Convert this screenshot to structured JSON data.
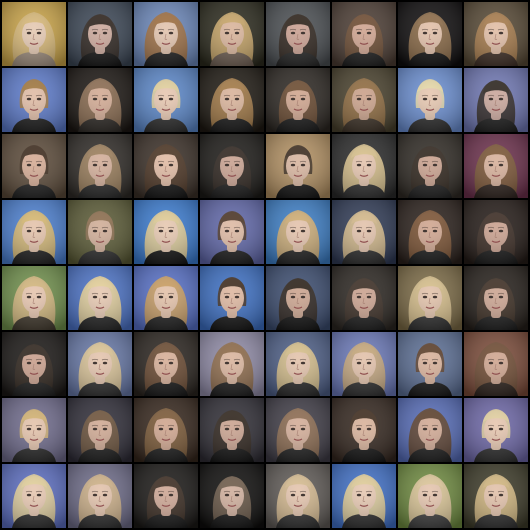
{
  "grid": {
    "rows": 8,
    "cols": 8,
    "tiles": [
      {
        "bg": "#c9a347",
        "hair": "#d7b777",
        "skin": "#e5c9b2",
        "shirt": "#9b8a7a",
        "style": "long"
      },
      {
        "bg": "#3b4655",
        "hair": "#2b2019",
        "skin": "#cba89b",
        "shirt": "#111111",
        "style": "dark"
      },
      {
        "bg": "#6a86b9",
        "hair": "#9d6c3d",
        "skin": "#e2c3ad",
        "shirt": "#1d1d1d",
        "style": "long"
      },
      {
        "bg": "#2b2a1d",
        "hair": "#c7a466",
        "skin": "#d9b49a",
        "shirt": "#6b5b4f",
        "style": "long"
      },
      {
        "bg": "#4a4e52",
        "hair": "#2a1f16",
        "skin": "#caa091",
        "shirt": "#232323",
        "style": "dark"
      },
      {
        "bg": "#4b3c33",
        "hair": "#6d4a30",
        "skin": "#cfa38f",
        "shirt": "#1b1b1b",
        "style": "dark"
      },
      {
        "bg": "#0e0c0d",
        "hair": "#8c6a46",
        "skin": "#e1bfa8",
        "shirt": "#101010",
        "style": "long"
      },
      {
        "bg": "#564834",
        "hair": "#a77a4a",
        "skin": "#e1bda5",
        "shirt": "#3b2b22",
        "style": "long"
      },
      {
        "bg": "#5b79c9",
        "hair": "#a0763d",
        "skin": "#e0bca5",
        "shirt": "#1b1b1b",
        "style": "short"
      },
      {
        "bg": "#1b1612",
        "hair": "#8a6a4f",
        "skin": "#d2aa93",
        "shirt": "#2a2622",
        "style": "long"
      },
      {
        "bg": "#5a86c8",
        "hair": "#e2d09c",
        "skin": "#e7c7b0",
        "shirt": "#2a2a2a",
        "style": "short"
      },
      {
        "bg": "#1e1912",
        "hair": "#a27844",
        "skin": "#d9b39a",
        "shirt": "#171717",
        "style": "long"
      },
      {
        "bg": "#2c2722",
        "hair": "#6b4a2f",
        "skin": "#cfa58e",
        "shirt": "#181818",
        "style": "dark"
      },
      {
        "bg": "#48402c",
        "hair": "#8f6a3e",
        "skin": "#caa18a",
        "shirt": "#3a2f24",
        "style": "long"
      },
      {
        "bg": "#6a8ed1",
        "hair": "#e6d8a7",
        "skin": "#e6c7b0",
        "shirt": "#2a2a2a",
        "style": "short"
      },
      {
        "bg": "#6e76b2",
        "hair": "#2a221c",
        "skin": "#c9a69b",
        "shirt": "#1a1a1a",
        "style": "dark"
      },
      {
        "bg": "#5b4a39",
        "hair": "#3c2a1c",
        "skin": "#d5ab94",
        "shirt": "#1d1d1d",
        "style": "short"
      },
      {
        "bg": "#2e2a26",
        "hair": "#9b7d5a",
        "skin": "#d2ad98",
        "shirt": "#262626",
        "style": "long"
      },
      {
        "bg": "#3a2f27",
        "hair": "#4a3321",
        "skin": "#e0baa3",
        "shirt": "#111111",
        "style": "long"
      },
      {
        "bg": "#1c1a17",
        "hair": "#2e241d",
        "skin": "#c8a190",
        "shirt": "#1b1b1b",
        "style": "dark"
      },
      {
        "bg": "#b18f61",
        "hair": "#3a2a1d",
        "skin": "#d8b59f",
        "shirt": "#121212",
        "style": "short"
      },
      {
        "bg": "#2a2a2a",
        "hair": "#d8c08a",
        "skin": "#e4c4ad",
        "shirt": "#2c2c2c",
        "style": "long"
      },
      {
        "bg": "#2f2a24",
        "hair": "#2f241b",
        "skin": "#c9a18e",
        "shirt": "#1e1e1e",
        "style": "dark"
      },
      {
        "bg": "#6b2f4b",
        "hair": "#7a5533",
        "skin": "#d7b09a",
        "shirt": "#2a1f1a",
        "style": "long"
      },
      {
        "bg": "#4b7fd0",
        "hair": "#d7b870",
        "skin": "#e4c3ab",
        "shirt": "#1d1d1d",
        "style": "long"
      },
      {
        "bg": "#5a5a35",
        "hair": "#8b6c4c",
        "skin": "#d0ad97",
        "shirt": "#2b2b2b",
        "style": "short"
      },
      {
        "bg": "#3a7bd0",
        "hair": "#e0cc95",
        "skin": "#e6c8b0",
        "shirt": "#111111",
        "style": "long"
      },
      {
        "bg": "#5f66a8",
        "hair": "#4a3324",
        "skin": "#ddb9a3",
        "shirt": "#1b1b1b",
        "style": "short"
      },
      {
        "bg": "#3c7ec6",
        "hair": "#d0ad73",
        "skin": "#e4c3ac",
        "shirt": "#202020",
        "style": "long"
      },
      {
        "bg": "#2f3a55",
        "hair": "#d5b98a",
        "skin": "#e2c2ab",
        "shirt": "#2a2a2a",
        "style": "long"
      },
      {
        "bg": "#2a201b",
        "hair": "#7c5333",
        "skin": "#cfa58f",
        "shirt": "#1a1a1a",
        "style": "long"
      },
      {
        "bg": "#241b17",
        "hair": "#3a2a21",
        "skin": "#c9a08e",
        "shirt": "#171717",
        "style": "dark"
      },
      {
        "bg": "#6f8f4b",
        "hair": "#d3b67c",
        "skin": "#e5c4ad",
        "shirt": "#3d3529",
        "style": "long"
      },
      {
        "bg": "#4b72c6",
        "hair": "#e4cf98",
        "skin": "#e6c8b1",
        "shirt": "#222222",
        "style": "long"
      },
      {
        "bg": "#566fc6",
        "hair": "#c99c60",
        "skin": "#e3c1a9",
        "shirt": "#1f1f1f",
        "style": "long"
      },
      {
        "bg": "#3c6fc3",
        "hair": "#3d2a1c",
        "skin": "#ddb7a0",
        "shirt": "#121212",
        "style": "short"
      },
      {
        "bg": "#3b4c6f",
        "hair": "#2a1f16",
        "skin": "#cba48f",
        "shirt": "#111111",
        "style": "dark"
      },
      {
        "bg": "#2b2621",
        "hair": "#3a2c22",
        "skin": "#caa28f",
        "shirt": "#1b1b1b",
        "style": "dark"
      },
      {
        "bg": "#7b6a45",
        "hair": "#d6be8a",
        "skin": "#e2c2aa",
        "shirt": "#2d2d2d",
        "style": "long"
      },
      {
        "bg": "#251f1a",
        "hair": "#3c2c21",
        "skin": "#cba491",
        "shirt": "#1a1a1a",
        "style": "dark"
      },
      {
        "bg": "#1a1715",
        "hair": "#2d221a",
        "skin": "#c99f8c",
        "shirt": "#1b1b1b",
        "style": "dark"
      },
      {
        "bg": "#6677a6",
        "hair": "#dcc494",
        "skin": "#e4c4ad",
        "shirt": "#2b2b2b",
        "style": "long"
      },
      {
        "bg": "#2a241f",
        "hair": "#6a4a30",
        "skin": "#d6ae97",
        "shirt": "#151515",
        "style": "long"
      },
      {
        "bg": "#8f8aa6",
        "hair": "#8c6846",
        "skin": "#d9b49d",
        "shirt": "#1b1b1b",
        "style": "long"
      },
      {
        "bg": "#4d5e86",
        "hair": "#d7bf89",
        "skin": "#e3c3ab",
        "shirt": "#272727",
        "style": "long"
      },
      {
        "bg": "#6a78b8",
        "hair": "#c6a77a",
        "skin": "#e2c1aa",
        "shirt": "#2b2b2b",
        "style": "long"
      },
      {
        "bg": "#5b6e94",
        "hair": "#5a3c27",
        "skin": "#d8b19a",
        "shirt": "#141414",
        "style": "short"
      },
      {
        "bg": "#7a4a38",
        "hair": "#6e4a31",
        "skin": "#cfa58f",
        "shirt": "#2a1f19",
        "style": "long"
      },
      {
        "bg": "#6e6a8b",
        "hair": "#d2b171",
        "skin": "#e4c3ab",
        "shirt": "#262626",
        "style": "short"
      },
      {
        "bg": "#2f2d38",
        "hair": "#6d5239",
        "skin": "#cfa993",
        "shirt": "#1b1b1b",
        "style": "dark"
      },
      {
        "bg": "#35261c",
        "hair": "#7b5836",
        "skin": "#cfa58e",
        "shirt": "#1a1a1a",
        "style": "long"
      },
      {
        "bg": "#2f2d35",
        "hair": "#2d2219",
        "skin": "#caa390",
        "shirt": "#111111",
        "style": "dark"
      },
      {
        "bg": "#3f3c46",
        "hair": "#8c6a4f",
        "skin": "#d3ad98",
        "shirt": "#1f1f1f",
        "style": "long"
      },
      {
        "bg": "#33261e",
        "hair": "#3d2a1b",
        "skin": "#d8b29a",
        "shirt": "#121212",
        "style": "short"
      },
      {
        "bg": "#556bb7",
        "hair": "#5b3f2b",
        "skin": "#d1a994",
        "shirt": "#1b1b1b",
        "style": "long"
      },
      {
        "bg": "#6c66a6",
        "hair": "#e2cf9f",
        "skin": "#e6c6af",
        "shirt": "#2a2a2a",
        "style": "short"
      },
      {
        "bg": "#5b6dc0",
        "hair": "#e2cf9a",
        "skin": "#e6c7b0",
        "shirt": "#2a2a2a",
        "style": "long"
      },
      {
        "bg": "#6d6b88",
        "hair": "#cdb086",
        "skin": "#e2c2ab",
        "shirt": "#2b2b2b",
        "style": "long"
      },
      {
        "bg": "#1a1816",
        "hair": "#3a2a1f",
        "skin": "#cda694",
        "shirt": "#161616",
        "style": "dark"
      },
      {
        "bg": "#0e0d0c",
        "hair": "#6d5a48",
        "skin": "#cfae9c",
        "shirt": "#121212",
        "style": "dark"
      },
      {
        "bg": "#5f5a56",
        "hair": "#d6bb8f",
        "skin": "#e4c4ad",
        "shirt": "#2d2d2d",
        "style": "long"
      },
      {
        "bg": "#3f6fc6",
        "hair": "#e0cc98",
        "skin": "#e6c8b1",
        "shirt": "#2a2a2a",
        "style": "long"
      },
      {
        "bg": "#6e8a3f",
        "hair": "#dcc598",
        "skin": "#e4c4ad",
        "shirt": "#3a3a3a",
        "style": "long"
      },
      {
        "bg": "#3c3a28",
        "hair": "#d2b67e",
        "skin": "#e2c1a9",
        "shirt": "#2c2c2c",
        "style": "long"
      }
    ]
  }
}
